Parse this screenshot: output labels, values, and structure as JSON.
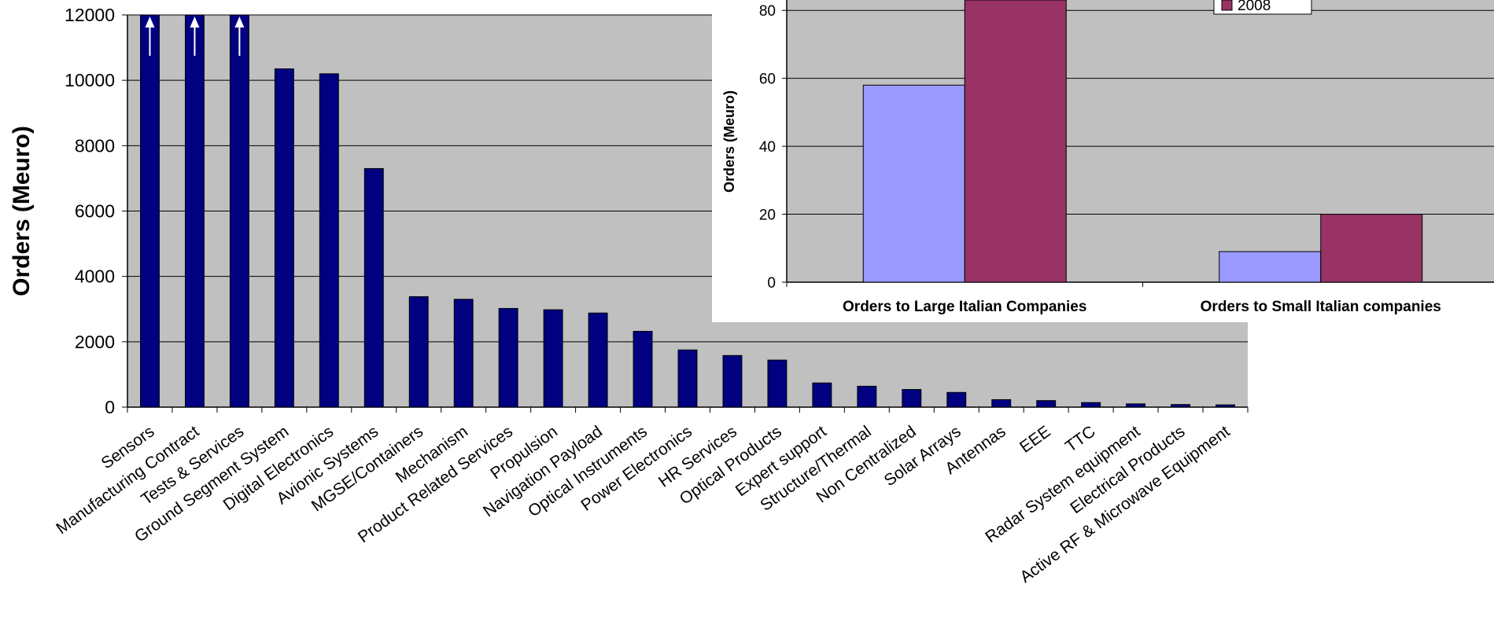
{
  "chart_data": [
    {
      "type": "bar",
      "ylabel": "Orders (Meuro)",
      "xlabel": "",
      "ylim": [
        0,
        12000
      ],
      "yticks": [
        0,
        2000,
        4000,
        6000,
        8000,
        10000,
        12000
      ],
      "grid": true,
      "colors": {
        "bar": "#000080",
        "plot_bg": "#c0c0c0",
        "arrow": "#ffffff"
      },
      "off_scale_arrows": [
        "Sensors",
        "Manufacturing Contract",
        "Tests & Services"
      ],
      "categories": [
        "Sensors",
        "Manufacturing Contract",
        "Tests & Services",
        "Ground Segment System",
        "Digital Electronics",
        "Avionic Systems",
        "MGSE/Containers",
        "Mechanism",
        "Product Related Services",
        "Propulsion",
        "Navigation Payload",
        "Optical Instruments",
        "Power Electronics",
        "HR Services",
        "Optical Products",
        "Expert support",
        "Structure/Thermal",
        "Non Centralized",
        "Solar Arrays",
        "Antennas",
        "EEE",
        "TTC",
        "Radar System equipment",
        "Electrical Products",
        "Active RF & Microwave Equipment"
      ],
      "values": [
        12000,
        12000,
        12000,
        10350,
        10200,
        7300,
        3380,
        3300,
        3020,
        2980,
        2880,
        2320,
        1750,
        1580,
        1440,
        740,
        640,
        540,
        450,
        230,
        200,
        140,
        100,
        80,
        70
      ]
    },
    {
      "type": "bar",
      "ylabel": "Orders (Meuro)",
      "ylim": [
        0,
        80
      ],
      "yticks": [
        0,
        20,
        40,
        60,
        80
      ],
      "grid": true,
      "colors": {
        "plot_bg": "#c0c0c0"
      },
      "categories": [
        "Orders to Large Italian Companies",
        "Orders to Small Italian companies"
      ],
      "legend_position": "top-right",
      "series": [
        {
          "name": "",
          "color": "#9999ff",
          "values": [
            58,
            9
          ]
        },
        {
          "name": "2008",
          "color": "#993366",
          "values": [
            88,
            20
          ]
        }
      ]
    }
  ]
}
